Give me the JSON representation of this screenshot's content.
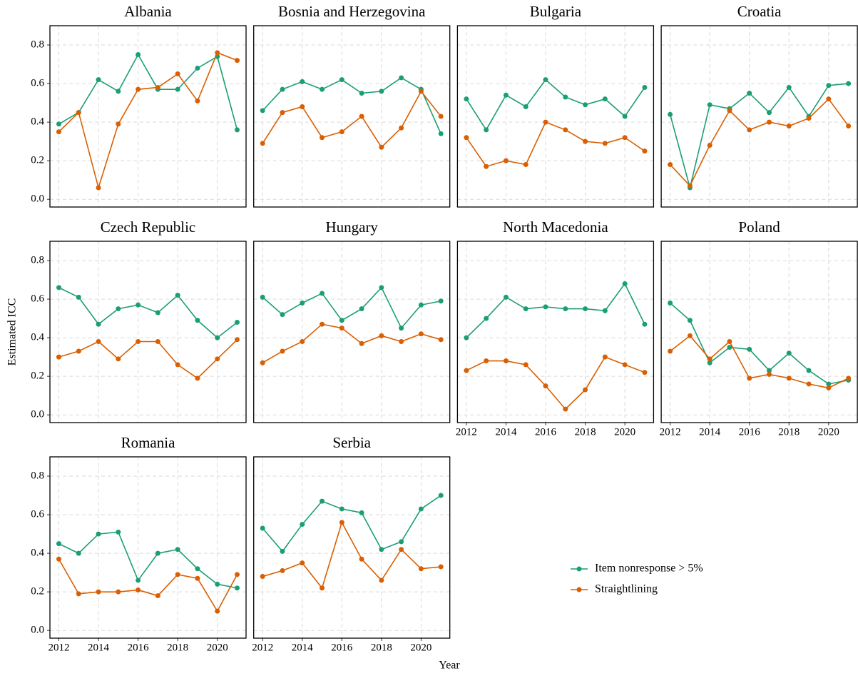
{
  "chart_data": [
    {
      "type": "line",
      "title": "Albania",
      "ylabel": "Estimated ICC",
      "xlabel": "Year",
      "x": [
        2012,
        2013,
        2014,
        2015,
        2016,
        2017,
        2018,
        2019,
        2020,
        2021
      ],
      "xlim": [
        2011.55,
        2021.45
      ],
      "xticks": [
        2012,
        2014,
        2016,
        2018,
        2020
      ],
      "ylim": [
        -0.04,
        0.9
      ],
      "yticks": [
        {
          "value": 0,
          "label": "0.0"
        },
        0.2,
        0.4,
        0.6,
        0.8
      ],
      "grid": true,
      "series": [
        {
          "name": "Item nonresponse > 5%",
          "color": "#1b9e77",
          "values": [
            0.39,
            0.45,
            0.62,
            0.56,
            0.75,
            0.57,
            0.57,
            0.68,
            0.74,
            0.36
          ]
        },
        {
          "name": "Straightlining",
          "color": "#d95f02",
          "values": [
            0.35,
            0.45,
            0.06,
            0.39,
            0.57,
            0.58,
            0.65,
            0.51,
            0.76,
            0.72
          ]
        }
      ]
    },
    {
      "type": "line",
      "title": "Bosnia and Herzegovina",
      "x": [
        2012,
        2013,
        2014,
        2015,
        2016,
        2017,
        2018,
        2019,
        2020,
        2021
      ],
      "xlim": [
        2011.55,
        2021.45
      ],
      "xticks": [
        2012,
        2014,
        2016,
        2018,
        2020
      ],
      "ylim": [
        -0.04,
        0.9
      ],
      "yticks": [
        {
          "value": 0,
          "label": "0.0"
        },
        0.2,
        0.4,
        0.6,
        0.8
      ],
      "grid": true,
      "series": [
        {
          "name": "Item nonresponse > 5%",
          "color": "#1b9e77",
          "values": [
            0.46,
            0.57,
            0.61,
            0.57,
            0.62,
            0.55,
            0.56,
            0.63,
            0.57,
            0.34
          ]
        },
        {
          "name": "Straightlining",
          "color": "#d95f02",
          "values": [
            0.29,
            0.45,
            0.48,
            0.32,
            0.35,
            0.43,
            0.27,
            0.37,
            0.56,
            0.43
          ]
        }
      ]
    },
    {
      "type": "line",
      "title": "Bulgaria",
      "x": [
        2012,
        2013,
        2014,
        2015,
        2016,
        2017,
        2018,
        2019,
        2020,
        2021
      ],
      "xlim": [
        2011.55,
        2021.45
      ],
      "xticks": [
        2012,
        2014,
        2016,
        2018,
        2020
      ],
      "ylim": [
        -0.04,
        0.9
      ],
      "yticks": [
        {
          "value": 0,
          "label": "0.0"
        },
        0.2,
        0.4,
        0.6,
        0.8
      ],
      "grid": true,
      "series": [
        {
          "name": "Item nonresponse > 5%",
          "color": "#1b9e77",
          "values": [
            0.52,
            0.36,
            0.54,
            0.48,
            0.62,
            0.53,
            0.49,
            0.52,
            0.43,
            0.58
          ]
        },
        {
          "name": "Straightlining",
          "color": "#d95f02",
          "values": [
            0.32,
            0.17,
            0.2,
            0.18,
            0.4,
            0.36,
            0.3,
            0.29,
            0.32,
            0.25
          ]
        }
      ]
    },
    {
      "type": "line",
      "title": "Croatia",
      "x": [
        2012,
        2013,
        2014,
        2015,
        2016,
        2017,
        2018,
        2019,
        2020,
        2021
      ],
      "xlim": [
        2011.55,
        2021.45
      ],
      "xticks": [
        2012,
        2014,
        2016,
        2018,
        2020
      ],
      "ylim": [
        -0.04,
        0.9
      ],
      "yticks": [
        {
          "value": 0,
          "label": "0.0"
        },
        0.2,
        0.4,
        0.6,
        0.8
      ],
      "grid": true,
      "series": [
        {
          "name": "Item nonresponse > 5%",
          "color": "#1b9e77",
          "values": [
            0.44,
            0.06,
            0.49,
            0.47,
            0.55,
            0.45,
            0.58,
            0.43,
            0.59,
            0.6
          ]
        },
        {
          "name": "Straightlining",
          "color": "#d95f02",
          "values": [
            0.18,
            0.07,
            0.28,
            0.46,
            0.36,
            0.4,
            0.38,
            0.42,
            0.52,
            0.38
          ]
        }
      ]
    },
    {
      "type": "line",
      "title": "Czech Republic",
      "x": [
        2012,
        2013,
        2014,
        2015,
        2016,
        2017,
        2018,
        2019,
        2020,
        2021
      ],
      "xlim": [
        2011.55,
        2021.45
      ],
      "xticks": [
        2012,
        2014,
        2016,
        2018,
        2020
      ],
      "ylim": [
        -0.04,
        0.9
      ],
      "yticks": [
        {
          "value": 0,
          "label": "0.0"
        },
        0.2,
        0.4,
        0.6,
        0.8
      ],
      "grid": true,
      "series": [
        {
          "name": "Item nonresponse > 5%",
          "color": "#1b9e77",
          "values": [
            0.66,
            0.61,
            0.47,
            0.55,
            0.57,
            0.53,
            0.62,
            0.49,
            0.4,
            0.48
          ]
        },
        {
          "name": "Straightlining",
          "color": "#d95f02",
          "values": [
            0.3,
            0.33,
            0.38,
            0.29,
            0.38,
            0.38,
            0.26,
            0.19,
            0.29,
            0.39
          ]
        }
      ]
    },
    {
      "type": "line",
      "title": "Hungary",
      "x": [
        2012,
        2013,
        2014,
        2015,
        2016,
        2017,
        2018,
        2019,
        2020,
        2021
      ],
      "xlim": [
        2011.55,
        2021.45
      ],
      "xticks": [
        2012,
        2014,
        2016,
        2018,
        2020
      ],
      "ylim": [
        -0.04,
        0.9
      ],
      "yticks": [
        {
          "value": 0,
          "label": "0.0"
        },
        0.2,
        0.4,
        0.6,
        0.8
      ],
      "grid": true,
      "series": [
        {
          "name": "Item nonresponse > 5%",
          "color": "#1b9e77",
          "values": [
            0.61,
            0.52,
            0.58,
            0.63,
            0.49,
            0.55,
            0.66,
            0.45,
            0.57,
            0.59
          ]
        },
        {
          "name": "Straightlining",
          "color": "#d95f02",
          "values": [
            0.27,
            0.33,
            0.38,
            0.47,
            0.45,
            0.37,
            0.41,
            0.38,
            0.42,
            0.39
          ]
        }
      ]
    },
    {
      "type": "line",
      "title": "North Macedonia",
      "x": [
        2012,
        2013,
        2014,
        2015,
        2016,
        2017,
        2018,
        2019,
        2020,
        2021
      ],
      "xlim": [
        2011.55,
        2021.45
      ],
      "xticks": [
        2012,
        2014,
        2016,
        2018,
        2020
      ],
      "ylim": [
        -0.04,
        0.9
      ],
      "yticks": [
        {
          "value": 0,
          "label": "0.0"
        },
        0.2,
        0.4,
        0.6,
        0.8
      ],
      "grid": true,
      "series": [
        {
          "name": "Item nonresponse > 5%",
          "color": "#1b9e77",
          "values": [
            0.4,
            0.5,
            0.61,
            0.55,
            0.56,
            0.55,
            0.55,
            0.54,
            0.68,
            0.47
          ]
        },
        {
          "name": "Straightlining",
          "color": "#d95f02",
          "values": [
            0.23,
            0.28,
            0.28,
            0.26,
            0.15,
            0.03,
            0.13,
            0.3,
            0.26,
            0.22
          ]
        }
      ]
    },
    {
      "type": "line",
      "title": "Poland",
      "x": [
        2012,
        2013,
        2014,
        2015,
        2016,
        2017,
        2018,
        2019,
        2020,
        2021
      ],
      "xlim": [
        2011.55,
        2021.45
      ],
      "xticks": [
        2012,
        2014,
        2016,
        2018,
        2020
      ],
      "ylim": [
        -0.04,
        0.9
      ],
      "yticks": [
        {
          "value": 0,
          "label": "0.0"
        },
        0.2,
        0.4,
        0.6,
        0.8
      ],
      "grid": true,
      "series": [
        {
          "name": "Item nonresponse > 5%",
          "color": "#1b9e77",
          "values": [
            0.58,
            0.49,
            0.27,
            0.35,
            0.34,
            0.23,
            0.32,
            0.23,
            0.16,
            0.18
          ]
        },
        {
          "name": "Straightlining",
          "color": "#d95f02",
          "values": [
            0.33,
            0.41,
            0.29,
            0.38,
            0.19,
            0.21,
            0.19,
            0.16,
            0.14,
            0.19
          ]
        }
      ]
    },
    {
      "type": "line",
      "title": "Romania",
      "x": [
        2012,
        2013,
        2014,
        2015,
        2016,
        2017,
        2018,
        2019,
        2020,
        2021
      ],
      "xlim": [
        2011.55,
        2021.45
      ],
      "xticks": [
        2012,
        2014,
        2016,
        2018,
        2020
      ],
      "ylim": [
        -0.04,
        0.9
      ],
      "yticks": [
        {
          "value": 0,
          "label": "0.0"
        },
        0.2,
        0.4,
        0.6,
        0.8
      ],
      "grid": true,
      "series": [
        {
          "name": "Item nonresponse > 5%",
          "color": "#1b9e77",
          "values": [
            0.45,
            0.4,
            0.5,
            0.51,
            0.26,
            0.4,
            0.42,
            0.32,
            0.24,
            0.22
          ]
        },
        {
          "name": "Straightlining",
          "color": "#d95f02",
          "values": [
            0.37,
            0.19,
            0.2,
            0.2,
            0.21,
            0.18,
            0.29,
            0.27,
            0.1,
            0.29
          ]
        }
      ]
    },
    {
      "type": "line",
      "title": "Serbia",
      "x": [
        2012,
        2013,
        2014,
        2015,
        2016,
        2017,
        2018,
        2019,
        2020,
        2021
      ],
      "xlim": [
        2011.55,
        2021.45
      ],
      "xticks": [
        2012,
        2014,
        2016,
        2018,
        2020
      ],
      "ylim": [
        -0.04,
        0.9
      ],
      "yticks": [
        {
          "value": 0,
          "label": "0.0"
        },
        0.2,
        0.4,
        0.6,
        0.8
      ],
      "grid": true,
      "series": [
        {
          "name": "Item nonresponse > 5%",
          "color": "#1b9e77",
          "values": [
            0.53,
            0.41,
            0.55,
            0.67,
            0.63,
            0.61,
            0.42,
            0.46,
            0.63,
            0.7
          ]
        },
        {
          "name": "Straightlining",
          "color": "#d95f02",
          "values": [
            0.28,
            0.31,
            0.35,
            0.22,
            0.56,
            0.37,
            0.26,
            0.42,
            0.32,
            0.33
          ]
        }
      ]
    }
  ]
}
